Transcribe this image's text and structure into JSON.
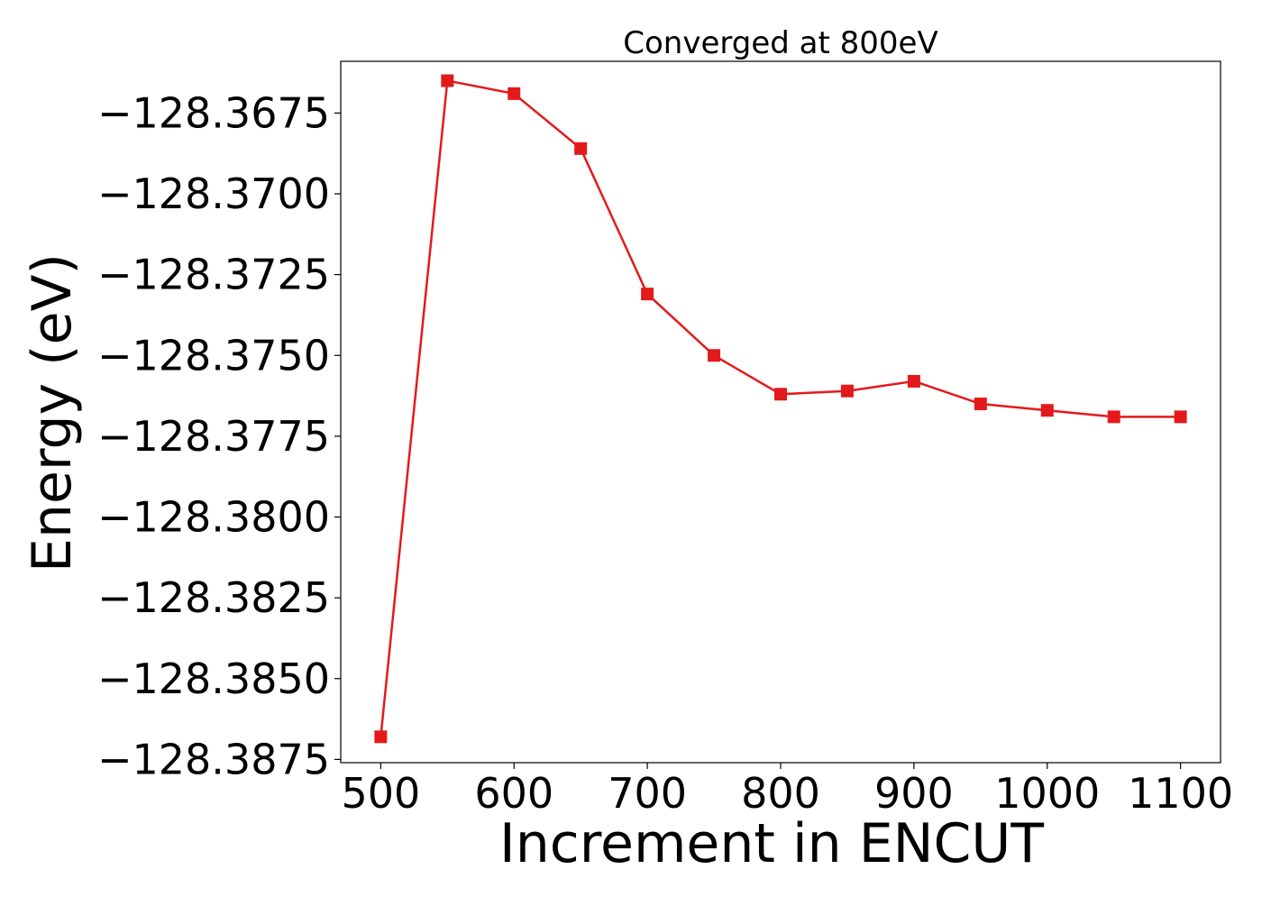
{
  "chart_data": {
    "type": "line",
    "title": "Converged at 800eV",
    "xlabel": "Increment in ENCUT",
    "ylabel": "Energy (eV)",
    "xlim": [
      470,
      1130
    ],
    "ylim": [
      -128.3876,
      -128.3659
    ],
    "xticks": [
      500,
      600,
      700,
      800,
      900,
      1000,
      1100
    ],
    "xtick_labels": [
      "500",
      "600",
      "700",
      "800",
      "900",
      "1000",
      "1100"
    ],
    "yticks": [
      -128.3675,
      -128.37,
      -128.3725,
      -128.375,
      -128.3775,
      -128.38,
      -128.3825,
      -128.385,
      -128.3875
    ],
    "ytick_labels": [
      "−128.3675",
      "−128.3700",
      "−128.3725",
      "−128.3750",
      "−128.3775",
      "−128.3800",
      "−128.3825",
      "−128.3850",
      "−128.3875"
    ],
    "grid": false,
    "series": [
      {
        "color": "#e31a1c",
        "marker": "square",
        "x": [
          500,
          550,
          600,
          650,
          700,
          750,
          800,
          850,
          900,
          950,
          1000,
          1050,
          1100
        ],
        "y": [
          -128.3868,
          -128.3665,
          -128.3669,
          -128.3686,
          -128.3731,
          -128.375,
          -128.3762,
          -128.3761,
          -128.3758,
          -128.3765,
          -128.3767,
          -128.3769,
          -128.3769
        ]
      }
    ]
  }
}
